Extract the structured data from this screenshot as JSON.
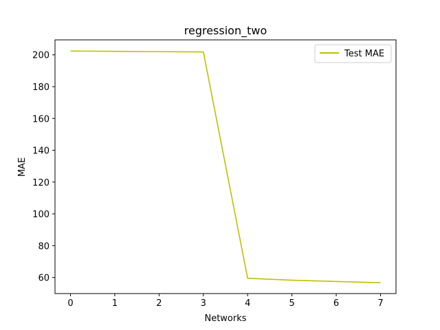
{
  "chart_data": {
    "type": "line",
    "title": "regression_two",
    "xlabel": "Networks",
    "ylabel": "MAE",
    "x": [
      0,
      1,
      2,
      3,
      4,
      5,
      6,
      7
    ],
    "xticks": [
      0,
      1,
      2,
      3,
      4,
      5,
      6,
      7
    ],
    "yticks": [
      60,
      80,
      100,
      120,
      140,
      160,
      180,
      200
    ],
    "xlim": [
      -0.35,
      7.35
    ],
    "ylim": [
      49.9,
      209.4
    ],
    "grid": false,
    "legend_position": "top-right",
    "series": [
      {
        "name": "Test MAE",
        "color": "#bfbf00",
        "values": [
          202.4,
          202.2,
          202.0,
          201.8,
          59.5,
          58.3,
          57.5,
          56.7
        ]
      }
    ]
  }
}
